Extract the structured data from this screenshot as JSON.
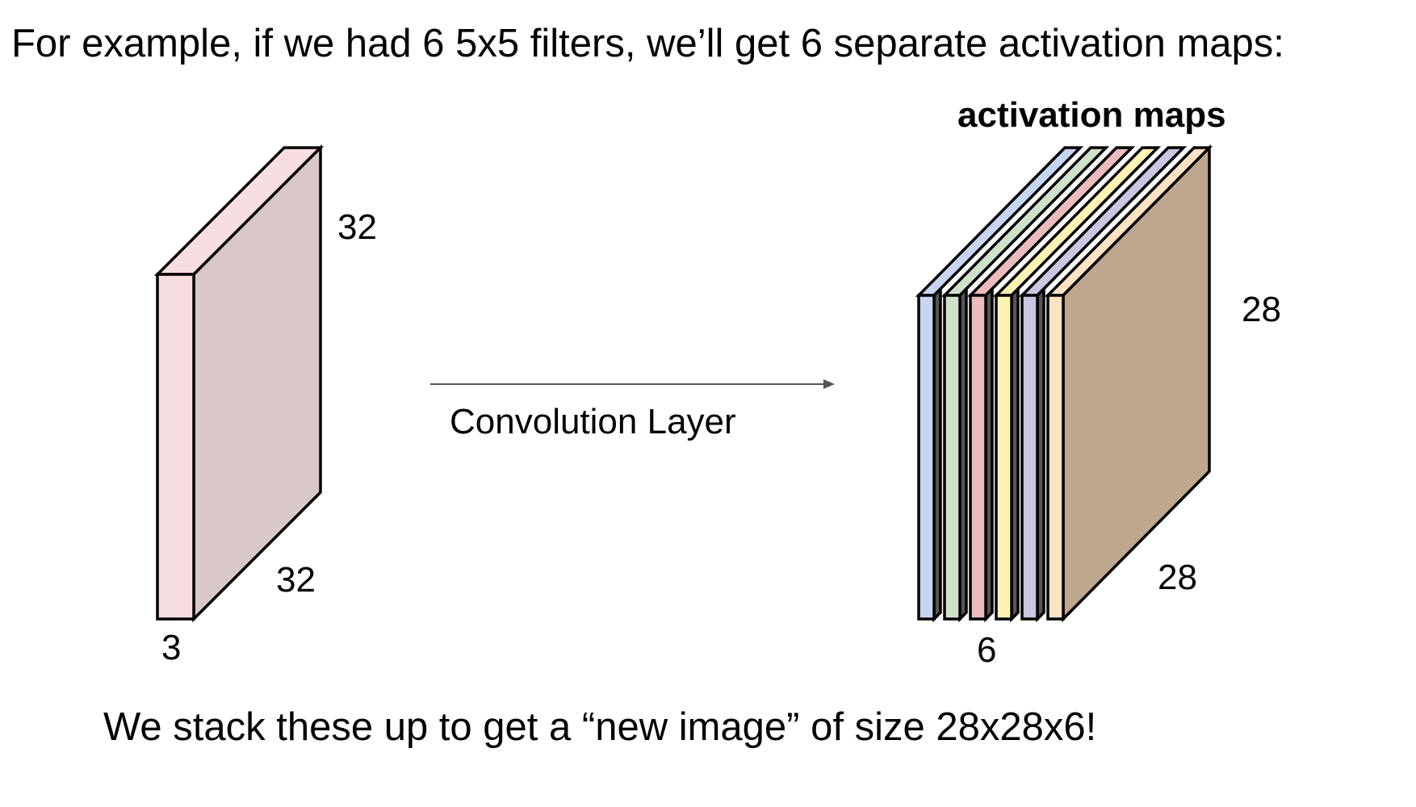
{
  "slide": {
    "headline": "For example, if we had 6 5x5 filters, we’ll get 6 separate activation maps:",
    "footer": "We stack these up to get a “new image” of size 28x28x6!"
  },
  "input_volume": {
    "height_label": "32",
    "width_label": "32",
    "depth_label": "3",
    "colors": {
      "front": "#f8dde0",
      "side": "#dac7c7",
      "top": "#f8dde0"
    }
  },
  "operation": {
    "label": "Convolution Layer",
    "arrow_color": "#555555"
  },
  "activation_maps": {
    "title": "activation maps",
    "height_label": "28",
    "width_label": "28",
    "depth_label": "6",
    "layer_colors": [
      "#c6d5f0",
      "#cfe2c9",
      "#ebbcbd",
      "#fff3b3",
      "#c8c6e0",
      "#fde2c4"
    ],
    "side_color": "#bfa78f"
  }
}
